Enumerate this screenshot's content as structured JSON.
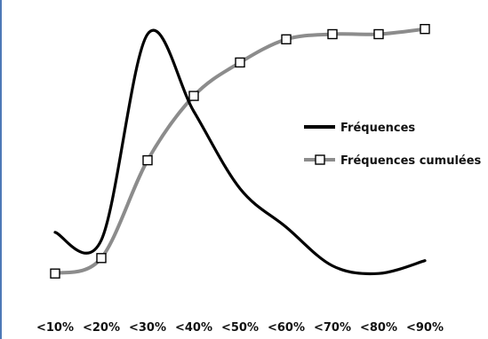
{
  "chart_data": {
    "type": "line",
    "title": "",
    "xlabel": "",
    "ylabel": "",
    "categories": [
      "<10%",
      "<20%",
      "<30%",
      "<40%",
      "<50%",
      "<60%",
      "<70%",
      "<80%",
      "<90%"
    ],
    "series": [
      {
        "name": "Fréquences",
        "color": "#000000",
        "marker": "none",
        "smooth": true,
        "values": [
          0.18,
          0.15,
          0.95,
          0.65,
          0.35,
          0.2,
          0.05,
          0.02,
          0.07
        ]
      },
      {
        "name": "Fréquences cumulées",
        "color": "#8c8c8c",
        "marker": "open-square",
        "smooth": true,
        "values": [
          0.02,
          0.08,
          0.46,
          0.71,
          0.84,
          0.93,
          0.95,
          0.95,
          0.97
        ]
      }
    ],
    "legend": {
      "placement": "right",
      "entries": [
        "Fréquences",
        "Fréquences cumulées"
      ]
    },
    "grid": false,
    "axes_lines_visible": false
  }
}
